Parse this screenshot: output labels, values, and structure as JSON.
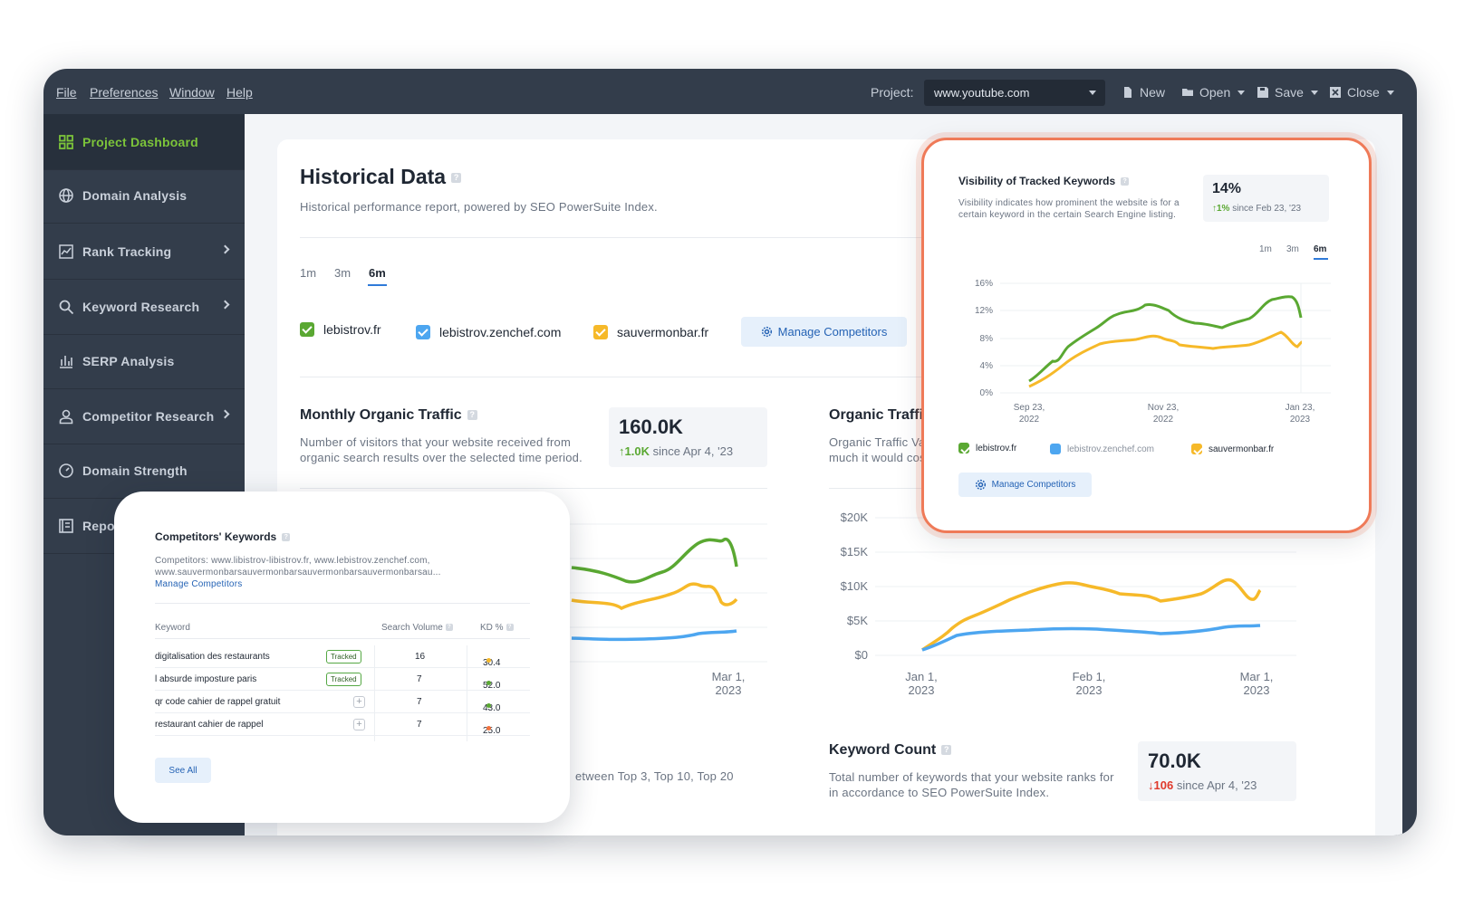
{
  "menu": {
    "file": "File",
    "preferences": "Preferences",
    "window": "Window",
    "help": "Help"
  },
  "toolbar": {
    "project_label": "Project:",
    "project_value": "www.youtube.com",
    "new": "New",
    "open": "Open",
    "save": "Save",
    "close": "Close"
  },
  "sidebar": {
    "items": [
      {
        "label": "Project Dashboard",
        "icon": "grid-icon"
      },
      {
        "label": "Domain Analysis",
        "icon": "globe-icon"
      },
      {
        "label": "Rank Tracking",
        "icon": "chart-line-icon"
      },
      {
        "label": "Keyword Research",
        "icon": "search-icon"
      },
      {
        "label": "SERP Analysis",
        "icon": "bar-chart-icon"
      },
      {
        "label": "Competitor Research",
        "icon": "user-icon"
      },
      {
        "label": "Domain Strength",
        "icon": "gauge-icon"
      },
      {
        "label": "Reports",
        "icon": "report-icon"
      }
    ]
  },
  "historical": {
    "title": "Historical Data",
    "help": "?",
    "subtitle": "Historical performance report, powered by SEO PowerSuite Index.",
    "tabs": [
      "1m",
      "3m",
      "6m"
    ],
    "active_tab": "6m",
    "competitors": [
      {
        "name": "lebistrov.fr",
        "color": "#5aa832"
      },
      {
        "name": "lebistrov.zenchef.com",
        "color": "#4da6f0"
      },
      {
        "name": "sauvermonbar.fr",
        "color": "#f6b929"
      }
    ],
    "manage": "Manage Competitors"
  },
  "monthly": {
    "title": "Monthly Organic Traffic",
    "desc1": "Number of visitors that your website received from",
    "desc2": "organic search results over the selected time period.",
    "stat": "160.0K",
    "delta": "1.0K",
    "since": "since Apr 4, '23",
    "xlabel_1": "Mar 1,",
    "xlabel_2": "2023"
  },
  "organic_value": {
    "title": "Organic Traffi",
    "desc1": "Organic Traffic Va",
    "desc2": "much it would cos",
    "yticks": [
      "$20K",
      "$15K",
      "$10K",
      "$5K",
      "$0"
    ],
    "xticks": [
      [
        "Jan 1,",
        "2023"
      ],
      [
        "Feb 1,",
        "2023"
      ],
      [
        "Mar 1,",
        "2023"
      ]
    ]
  },
  "keyword_count": {
    "title": "Keyword Count",
    "desc": "Total number of keywords that your website ranks for",
    "desc2": "in accordance to SEO PowerSuite Index.",
    "stat": "70.0K",
    "delta": "106",
    "since": "since Apr 4, '23"
  },
  "partial_text": "etween Top 3, Top 10, Top 20",
  "visibility": {
    "title": "Visibility of Tracked Keywords",
    "desc1": "Visibility indicates how prominent the website is for a",
    "desc2": "certain keyword in the certain Search Engine listing.",
    "stat": "14%",
    "delta": "1%",
    "since": "since Feb 23, '23",
    "tabs": [
      "1m",
      "3m",
      "6m"
    ],
    "yticks": [
      "16%",
      "12%",
      "8%",
      "4%",
      "0%"
    ],
    "xticks": [
      [
        "Sep 23,",
        "2022"
      ],
      [
        "Nov 23,",
        "2022"
      ],
      [
        "Jan 23,",
        "2023"
      ]
    ],
    "competitors": [
      "lebistrov.fr",
      "lebistrov.zenchef.com",
      "sauvermonbar.fr"
    ],
    "manage": "Manage Competitors"
  },
  "competitors_kw": {
    "title": "Competitors' Keywords",
    "desc_prefix": "Competitors: www.libistrov-libistrov.fr, www.lebistrov.zenchef.com,",
    "desc_line2": "www.sauvermonbarsauvermonbarsauvermonbarsauvermonbarsau...",
    "manage_link": "Manage Competitors",
    "headers": {
      "keyword": "Keyword",
      "volume": "Search Volume",
      "kd": "KD %"
    },
    "rows": [
      {
        "keyword": "digitalisation des restaurants",
        "status": "Tracked",
        "volume": "16",
        "kd": "30.4",
        "kd_color": "#f6b929"
      },
      {
        "keyword": "l absurde imposture paris",
        "status": "Tracked",
        "volume": "7",
        "kd": "52.0",
        "kd_color": "#5aa832"
      },
      {
        "keyword": "qr code cahier de rappel gratuit",
        "status": "+",
        "volume": "7",
        "kd": "43.0",
        "kd_color": "#5aa832"
      },
      {
        "keyword": "restaurant cahier de rappel",
        "status": "+",
        "volume": "7",
        "kd": "25.0",
        "kd_color": "#f4733f"
      }
    ],
    "see_all": "See All"
  },
  "colors": {
    "green": "#5aa832",
    "blue": "#4da6f0",
    "yellow": "#f6b929",
    "accent": "#2563b5",
    "highlight": "#ef7a58",
    "down": "#e0392b"
  }
}
